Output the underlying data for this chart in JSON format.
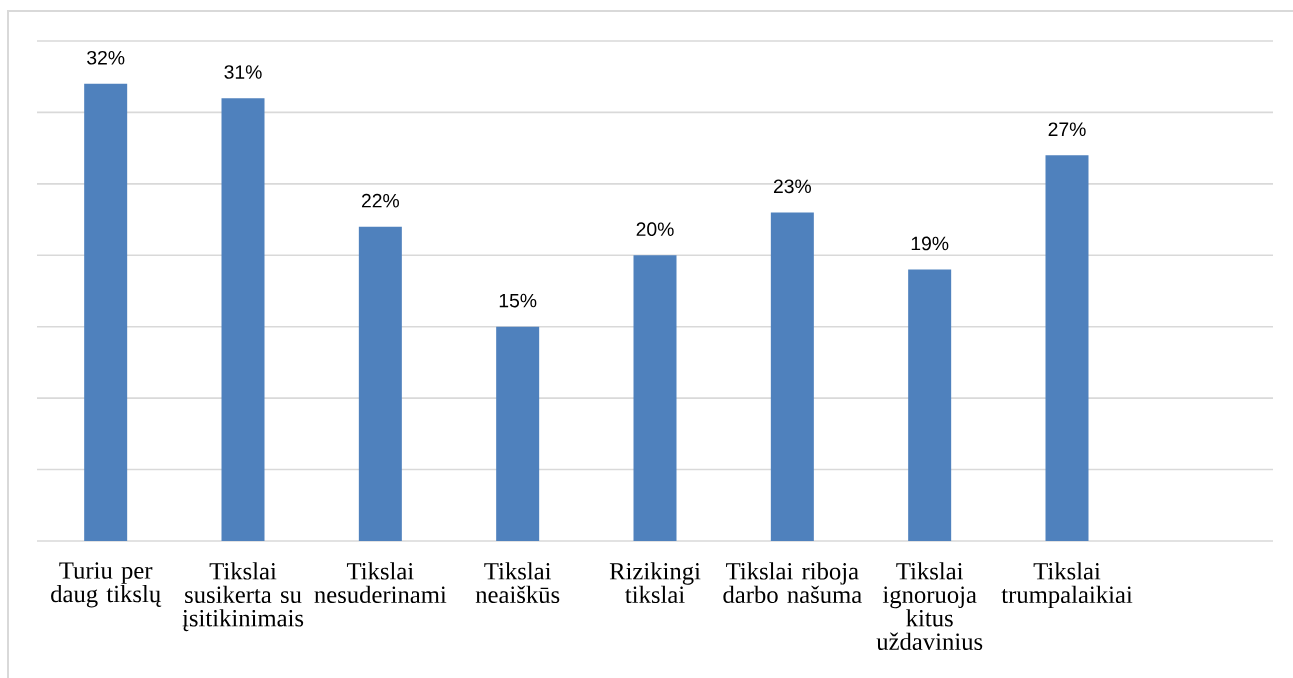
{
  "chart_data": {
    "type": "bar",
    "categories": [
      "Turiu per daug tikslų",
      "Tikslai susikerta su įsitikinimais",
      "Tikslai nesuderinami",
      "Tikslai neaiškūs",
      "Rizikingi tikslai",
      "Tikslai riboja darbo našuma",
      "Tikslai ignoruoja kitus uždavinius",
      "Tikslai trumpalaikiai",
      null
    ],
    "values": [
      32,
      31,
      22,
      15,
      20,
      23,
      19,
      27,
      null
    ],
    "value_labels": [
      "32%",
      "31%",
      "22%",
      "15%",
      "20%",
      "23%",
      "19%",
      "27%",
      null
    ],
    "color": "#4f81bd",
    "ylim": [
      0,
      35
    ],
    "yticks": [
      {
        "value": 0,
        "label": null
      },
      {
        "value": 5,
        "label": null
      },
      {
        "value": 10,
        "label": null
      },
      {
        "value": 15,
        "label": null
      },
      {
        "value": 20,
        "label": null
      },
      {
        "value": 25,
        "label": null
      },
      {
        "value": 30,
        "label": null
      },
      {
        "value": 35,
        "label": null
      }
    ],
    "grid": "y",
    "tick_labels": "x"
  }
}
